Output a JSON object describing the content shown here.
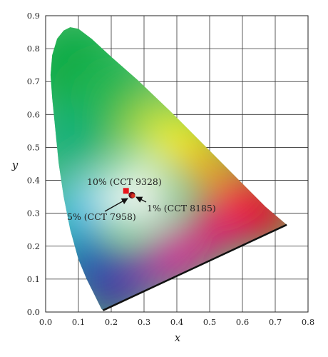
{
  "chart_data": {
    "type": "scatter",
    "xlabel": "x",
    "ylabel": "y",
    "xlim": [
      0.0,
      0.8
    ],
    "ylim": [
      0.0,
      0.9
    ],
    "x_ticks": [
      "0.0",
      "0.1",
      "0.2",
      "0.3",
      "0.4",
      "0.5",
      "0.6",
      "0.7",
      "0.8"
    ],
    "y_ticks": [
      "0.0",
      "0.1",
      "0.2",
      "0.3",
      "0.4",
      "0.5",
      "0.6",
      "0.7",
      "0.8",
      "0.9"
    ],
    "grid": true,
    "points": [
      {
        "label": "10% (CCT 9328)",
        "x": 0.245,
        "y": 0.368,
        "marker": "square",
        "color": "#e8141a"
      },
      {
        "label": "5% (CCT 7958)",
        "x": 0.263,
        "y": 0.355,
        "marker": "circle",
        "color": "#8b0f1c"
      },
      {
        "label": "1% (CCT 8185)",
        "x": 0.267,
        "y": 0.353,
        "marker": "circle",
        "color": "#d7301f"
      }
    ],
    "spectral_locus": [
      [
        0.175,
        0.005
      ],
      [
        0.17,
        0.01
      ],
      [
        0.16,
        0.03
      ],
      [
        0.145,
        0.06
      ],
      [
        0.125,
        0.1
      ],
      [
        0.1,
        0.16
      ],
      [
        0.075,
        0.25
      ],
      [
        0.055,
        0.35
      ],
      [
        0.04,
        0.45
      ],
      [
        0.03,
        0.55
      ],
      [
        0.02,
        0.65
      ],
      [
        0.015,
        0.72
      ],
      [
        0.02,
        0.78
      ],
      [
        0.035,
        0.83
      ],
      [
        0.055,
        0.855
      ],
      [
        0.075,
        0.865
      ],
      [
        0.1,
        0.86
      ],
      [
        0.14,
        0.83
      ],
      [
        0.2,
        0.775
      ],
      [
        0.28,
        0.705
      ],
      [
        0.38,
        0.61
      ],
      [
        0.48,
        0.51
      ],
      [
        0.58,
        0.41
      ],
      [
        0.67,
        0.32
      ],
      [
        0.735,
        0.265
      ]
    ]
  }
}
